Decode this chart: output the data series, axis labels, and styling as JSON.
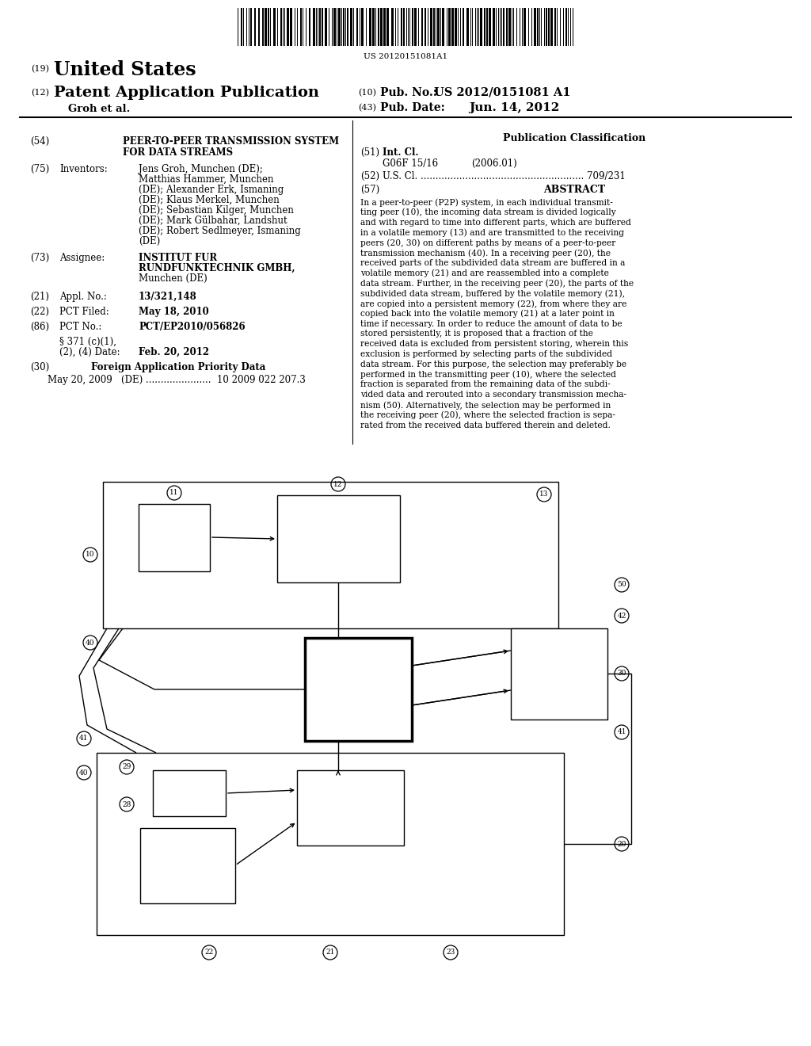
{
  "bg_color": "#ffffff",
  "barcode_text": "US 20120151081A1",
  "patent_number": "US 2012/0151081 A1",
  "pub_date": "Jun. 14, 2012",
  "header_title": "United States",
  "header_pub": "Patent Application Publication",
  "header_authors": "Groh et al.",
  "title_54": "(54)",
  "title_text1": "PEER-TO-PEER TRANSMISSION SYSTEM",
  "title_text2": "FOR DATA STREAMS",
  "inventors_75": "(75)",
  "inventors_label": "Inventors:",
  "inventors_lines": [
    "Jens Groh, Munchen (DE);",
    "Matthias Hammer, Munchen",
    "(DE); Alexander Erk, Ismaning",
    "(DE); Klaus Merkel, Munchen",
    "(DE); Sebastian Kilger, Munchen",
    "(DE); Mark Gülbahar, Landshut",
    "(DE); Robert Sedlmeyer, Ismaning",
    "(DE)"
  ],
  "assignee_73": "(73)",
  "assignee_label": "Assignee:",
  "assignee_lines": [
    "INSTITUT FUR",
    "RUNDFUNKTECHNIK GMBH,",
    "Munchen (DE)"
  ],
  "appl_21": "(21)",
  "appl_label": "Appl. No.:",
  "appl_val": "13/321,148",
  "pct_22": "(22)",
  "pct_label": "PCT Filed:",
  "pct_val": "May 18, 2010",
  "pctno_86": "(86)",
  "pctno_label": "PCT No.:",
  "pctno_val": "PCT/EP2010/056826",
  "s371_line1": "§ 371 (c)(1),",
  "s371_line2": "(2), (4) Date:",
  "s371_val": "Feb. 20, 2012",
  "foreign_30": "(30)",
  "foreign_label": "Foreign Application Priority Data",
  "foreign_data": "May 20, 2009   (DE) ......................  10 2009 022 207.3",
  "pub_class": "Publication Classification",
  "int_cl_51": "(51)",
  "int_cl_label": "Int. Cl.",
  "int_cl_val": "G06F 15/16",
  "int_cl_year": "(2006.01)",
  "us_cl_52": "(52)",
  "us_cl_line": "U.S. Cl. ....................................................... 709/231",
  "abstract_57": "(57)",
  "abstract_label": "ABSTRACT",
  "abstract_lines": [
    "In a peer-to-peer (P2P) system, in each individual transmit-",
    "ting peer (10), the incoming data stream is divided logically",
    "and with regard to time into different parts, which are buffered",
    "in a volatile memory (13) and are transmitted to the receiving",
    "peers (20, 30) on different paths by means of a peer-to-peer",
    "transmission mechanism (40). In a receiving peer (20), the",
    "received parts of the subdivided data stream are buffered in a",
    "volatile memory (21) and are reassembled into a complete",
    "data stream. Further, in the receiving peer (20), the parts of the",
    "subdivided data stream, buffered by the volatile memory (21),",
    "are copied into a persistent memory (22), from where they are",
    "copied back into the volatile memory (21) at a later point in",
    "time if necessary. In order to reduce the amount of data to be",
    "stored persistently, it is proposed that a fraction of the",
    "received data is excluded from persistent storing, wherein this",
    "exclusion is performed by selecting parts of the subdivided",
    "data stream. For this purpose, the selection may preferably be",
    "performed in the transmitting peer (10), where the selected",
    "fraction is separated from the remaining data of the subdi-",
    "vided data and rerouted into a secondary transmission mecha-",
    "nism (50). Alternatively, the selection may be performed in",
    "the receiving peer (20), where the selected fraction is sepa-",
    "rated from the received data buffered therein and deleted."
  ]
}
